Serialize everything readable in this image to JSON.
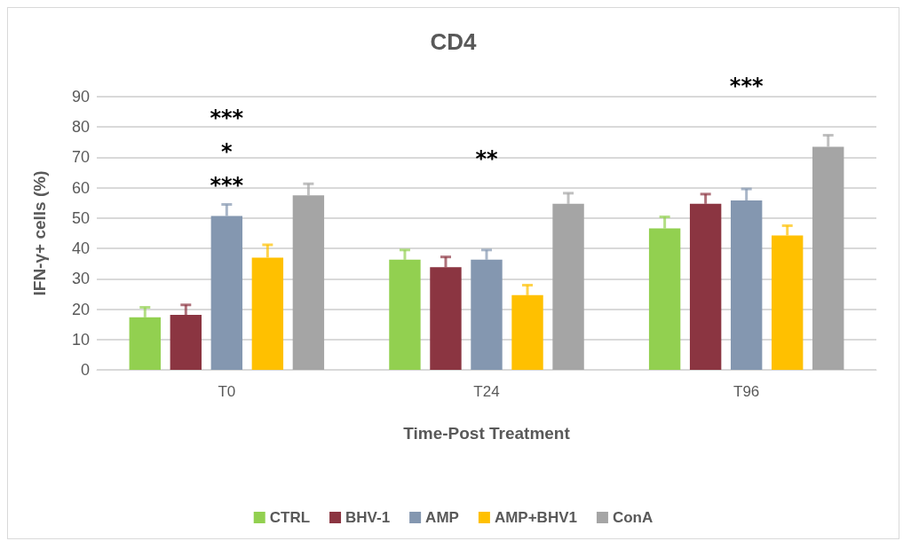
{
  "chart_data": {
    "type": "bar",
    "title": "CD4",
    "xlabel": "Time-Post Treatment",
    "ylabel": "IFN-γ+ cells (%)",
    "categories": [
      "T0",
      "T24",
      "T96"
    ],
    "series": [
      {
        "name": "CTRL",
        "color": "#92d050",
        "values": [
          17.3,
          36.3,
          46.6
        ],
        "errors": [
          3.3,
          3.2,
          3.8
        ]
      },
      {
        "name": "BHV-1",
        "color": "#8b3541",
        "values": [
          18.1,
          33.8,
          54.7
        ],
        "errors": [
          3.3,
          3.4,
          3.2
        ]
      },
      {
        "name": "AMP",
        "color": "#8497b0",
        "values": [
          50.7,
          36.3,
          55.8
        ],
        "errors": [
          3.8,
          3.2,
          3.8
        ]
      },
      {
        "name": "AMP+BHV1",
        "color": "#ffc000",
        "values": [
          37.0,
          24.6,
          44.3
        ],
        "errors": [
          4.2,
          3.3,
          3.2
        ]
      },
      {
        "name": "ConA",
        "color": "#a5a5a5",
        "values": [
          57.5,
          54.7,
          73.5
        ],
        "errors": [
          3.8,
          3.5,
          3.8
        ]
      }
    ],
    "ylim": [
      0,
      90
    ],
    "yticks": [
      0,
      10,
      20,
      30,
      40,
      50,
      60,
      70,
      80,
      90
    ],
    "grid": "y",
    "legend": "bottom",
    "annotations": [
      "***",
      "*",
      "***",
      "**",
      "***"
    ]
  }
}
